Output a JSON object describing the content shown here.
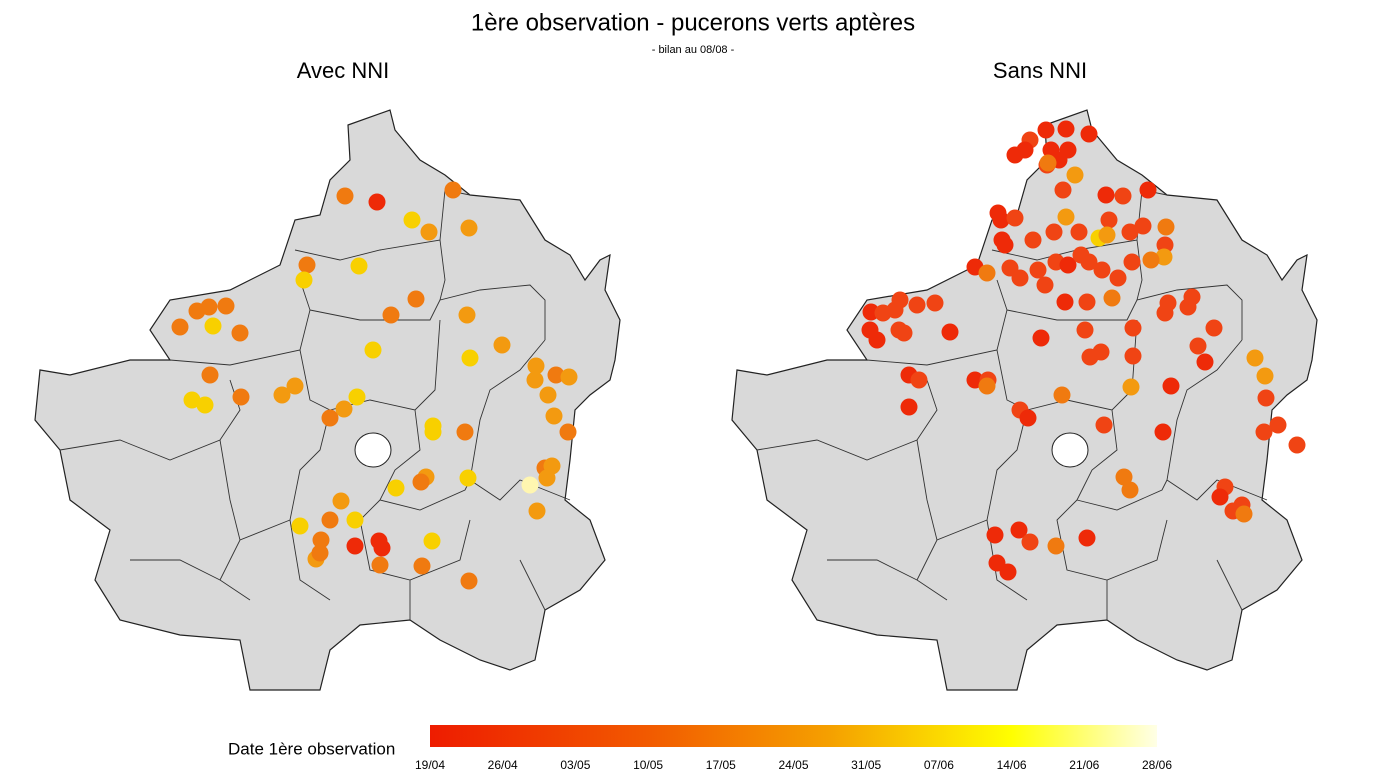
{
  "header": {
    "title": "1ère observation - pucerons verts aptères",
    "subtitle": "- bilan au 08/08 -"
  },
  "panels": [
    {
      "title": "Avec NNI"
    },
    {
      "title": "Sans NNI"
    }
  ],
  "legend": {
    "label": "Date 1ère observation",
    "ticks": [
      "19/04",
      "26/04",
      "03/05",
      "10/05",
      "17/05",
      "24/05",
      "31/05",
      "07/06",
      "14/06",
      "21/06",
      "28/06"
    ]
  }
}
